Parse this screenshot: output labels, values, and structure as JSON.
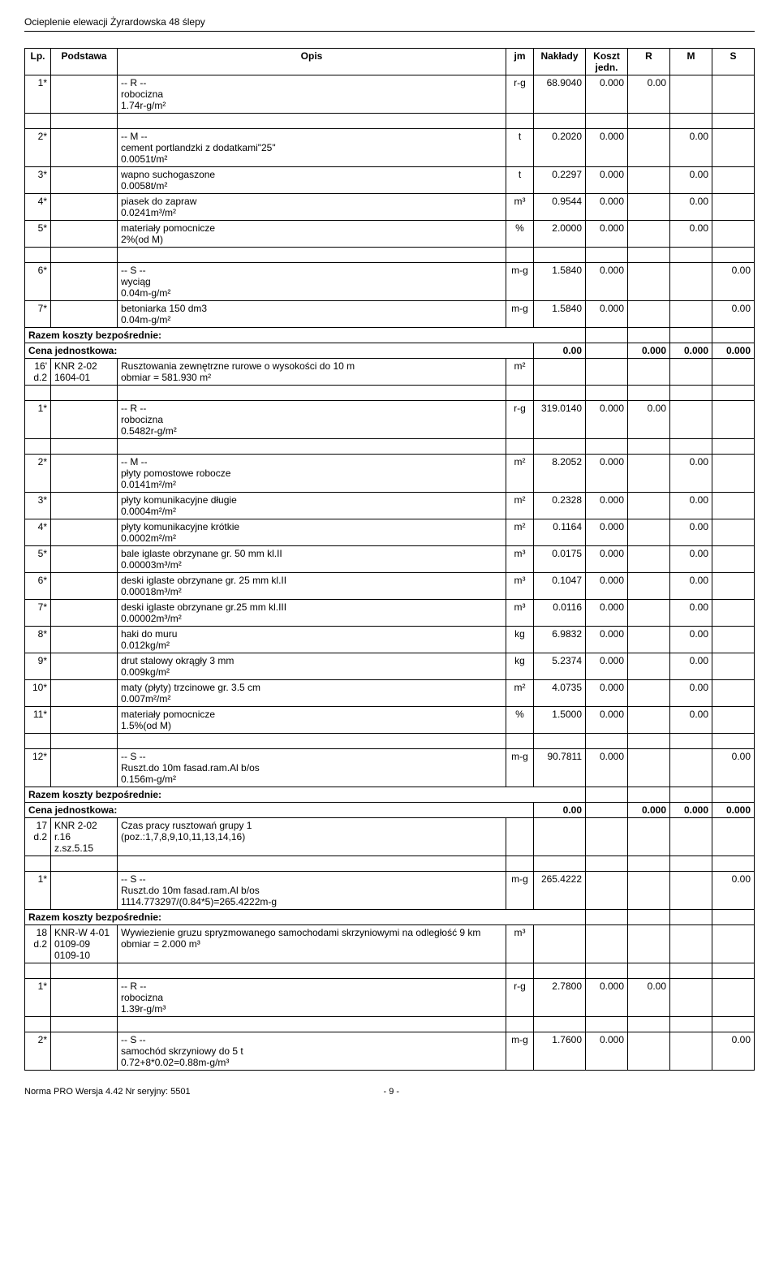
{
  "header": {
    "title": "Ocieplenie elewacji Żyrardowska 48 ślepy"
  },
  "columns": {
    "lp": "Lp.",
    "podstawa": "Podstawa",
    "opis": "Opis",
    "jm": "jm",
    "naklady": "Nakłady",
    "koszt": "Koszt jedn.",
    "r": "R",
    "m": "M",
    "s": "S"
  },
  "rows": [
    {
      "lp": "1*",
      "opis": "-- R --\nrobocizna\n1.74r-g/m²",
      "jm": "r-g",
      "naklady": "68.9040",
      "koszt": "0.000",
      "r": "0.00",
      "m": "",
      "s": ""
    },
    {
      "spacer": true
    },
    {
      "lp": "2*",
      "opis": "-- M --\ncement portlandzki z dodatkami\"25\"\n0.0051t/m²",
      "jm": "t",
      "naklady": "0.2020",
      "koszt": "0.000",
      "r": "",
      "m": "0.00",
      "s": ""
    },
    {
      "lp": "3*",
      "opis": "wapno suchogaszone\n0.0058t/m²",
      "jm": "t",
      "naklady": "0.2297",
      "koszt": "0.000",
      "r": "",
      "m": "0.00",
      "s": ""
    },
    {
      "lp": "4*",
      "opis": "piasek do zapraw\n0.0241m³/m²",
      "jm": "m³",
      "naklady": "0.9544",
      "koszt": "0.000",
      "r": "",
      "m": "0.00",
      "s": ""
    },
    {
      "lp": "5*",
      "opis": "materiały pomocnicze\n2%(od M)",
      "jm": "%",
      "naklady": "2.0000",
      "koszt": "0.000",
      "r": "",
      "m": "0.00",
      "s": ""
    },
    {
      "spacer": true
    },
    {
      "lp": "6*",
      "opis": "-- S --\nwyciąg\n0.04m-g/m²",
      "jm": "m-g",
      "naklady": "1.5840",
      "koszt": "0.000",
      "r": "",
      "m": "",
      "s": "0.00"
    },
    {
      "lp": "7*",
      "opis": "betoniarka 150 dm3\n0.04m-g/m²",
      "jm": "m-g",
      "naklady": "1.5840",
      "koszt": "0.000",
      "r": "",
      "m": "",
      "s": "0.00"
    },
    {
      "sum1": "Razem koszty bezpośrednie:",
      "sum2": "Cena jednostkowa:",
      "sum2val": "0.00",
      "r": "0.000",
      "m": "0.000",
      "s": "0.000"
    },
    {
      "lp": "16'\nd.2",
      "podstawa": "KNR 2-02\n1604-01",
      "opis": "Rusztowania zewnętrzne rurowe o wysokości do 10 m\nobmiar  = 581.930 m²",
      "jm": "m²",
      "naklady": "",
      "koszt": "",
      "r": "",
      "m": "",
      "s": ""
    },
    {
      "spacer": true
    },
    {
      "lp": "1*",
      "opis": "-- R --\nrobocizna\n0.5482r-g/m²",
      "jm": "r-g",
      "naklady": "319.0140",
      "koszt": "0.000",
      "r": "0.00",
      "m": "",
      "s": ""
    },
    {
      "spacer": true
    },
    {
      "lp": "2*",
      "opis": "-- M --\npłyty pomostowe robocze\n0.0141m²/m²",
      "jm": "m²",
      "naklady": "8.2052",
      "koszt": "0.000",
      "r": "",
      "m": "0.00",
      "s": ""
    },
    {
      "lp": "3*",
      "opis": "płyty komunikacyjne długie\n0.0004m²/m²",
      "jm": "m²",
      "naklady": "0.2328",
      "koszt": "0.000",
      "r": "",
      "m": "0.00",
      "s": ""
    },
    {
      "lp": "4*",
      "opis": "płyty komunikacyjne krótkie\n0.0002m²/m²",
      "jm": "m²",
      "naklady": "0.1164",
      "koszt": "0.000",
      "r": "",
      "m": "0.00",
      "s": ""
    },
    {
      "lp": "5*",
      "opis": "bale iglaste obrzynane gr. 50 mm kl.II\n0.00003m³/m²",
      "jm": "m³",
      "naklady": "0.0175",
      "koszt": "0.000",
      "r": "",
      "m": "0.00",
      "s": ""
    },
    {
      "lp": "6*",
      "opis": "deski iglaste obrzynane gr. 25 mm kl.II\n0.00018m³/m²",
      "jm": "m³",
      "naklady": "0.1047",
      "koszt": "0.000",
      "r": "",
      "m": "0.00",
      "s": ""
    },
    {
      "lp": "7*",
      "opis": "deski iglaste obrzynane gr.25 mm kl.III\n0.00002m³/m²",
      "jm": "m³",
      "naklady": "0.0116",
      "koszt": "0.000",
      "r": "",
      "m": "0.00",
      "s": ""
    },
    {
      "lp": "8*",
      "opis": "haki do muru\n0.012kg/m²",
      "jm": "kg",
      "naklady": "6.9832",
      "koszt": "0.000",
      "r": "",
      "m": "0.00",
      "s": ""
    },
    {
      "lp": "9*",
      "opis": "drut stalowy okrągły 3 mm\n0.009kg/m²",
      "jm": "kg",
      "naklady": "5.2374",
      "koszt": "0.000",
      "r": "",
      "m": "0.00",
      "s": ""
    },
    {
      "lp": "10*",
      "opis": "maty (płyty) trzcinowe gr. 3.5 cm\n0.007m²/m²",
      "jm": "m²",
      "naklady": "4.0735",
      "koszt": "0.000",
      "r": "",
      "m": "0.00",
      "s": ""
    },
    {
      "lp": "11*",
      "opis": "materiały pomocnicze\n1.5%(od M)",
      "jm": "%",
      "naklady": "1.5000",
      "koszt": "0.000",
      "r": "",
      "m": "0.00",
      "s": ""
    },
    {
      "spacer": true
    },
    {
      "lp": "12*",
      "opis": "-- S --\nRuszt.do 10m fasad.ram.Al b/os\n0.156m-g/m²",
      "jm": "m-g",
      "naklady": "90.7811",
      "koszt": "0.000",
      "r": "",
      "m": "",
      "s": "0.00"
    },
    {
      "sum1": "Razem koszty bezpośrednie:",
      "sum2": "Cena jednostkowa:",
      "sum2val": "0.00",
      "r": "0.000",
      "m": "0.000",
      "s": "0.000"
    },
    {
      "lp": "17\nd.2",
      "podstawa": "KNR 2-02\nr.16\nz.sz.5.15",
      "opis": "Czas pracy rusztowań grupy 1\n(poz.:1,7,8,9,10,11,13,14,16)",
      "jm": "",
      "naklady": "",
      "koszt": "",
      "r": "",
      "m": "",
      "s": ""
    },
    {
      "spacer": true
    },
    {
      "lp": "1*",
      "opis": "-- S --\nRuszt.do 10m fasad.ram.Al b/os\n1114.773297/(0.84*5)=265.4222m-g",
      "jm": "m-g",
      "naklady": "265.4222",
      "koszt": "",
      "r": "",
      "m": "",
      "s": "0.00"
    },
    {
      "sum1": "Razem koszty bezpośrednie:",
      "sum2": "",
      "sum2val": "",
      "r": "",
      "m": "",
      "s": ""
    },
    {
      "lp": "18\nd.2",
      "podstawa": "KNR-W 4-01\n0109-09\n0109-10",
      "opis": "Wywiezienie gruzu spryzmowanego samochodami skrzyniowymi na odległość 9 km\nobmiar  = 2.000 m³",
      "jm": "m³",
      "naklady": "",
      "koszt": "",
      "r": "",
      "m": "",
      "s": ""
    },
    {
      "spacer": true
    },
    {
      "lp": "1*",
      "opis": "-- R --\nrobocizna\n1.39r-g/m³",
      "jm": "r-g",
      "naklady": "2.7800",
      "koszt": "0.000",
      "r": "0.00",
      "m": "",
      "s": ""
    },
    {
      "spacer": true
    },
    {
      "lp": "2*",
      "opis": "-- S --\nsamochód skrzyniowy do 5 t\n0.72+8*0.02=0.88m-g/m³",
      "jm": "m-g",
      "naklady": "1.7600",
      "koszt": "0.000",
      "r": "",
      "m": "",
      "s": "0.00"
    }
  ],
  "footer": {
    "page": "- 9 -",
    "software": "Norma PRO Wersja 4.42 Nr seryjny: 5501"
  }
}
